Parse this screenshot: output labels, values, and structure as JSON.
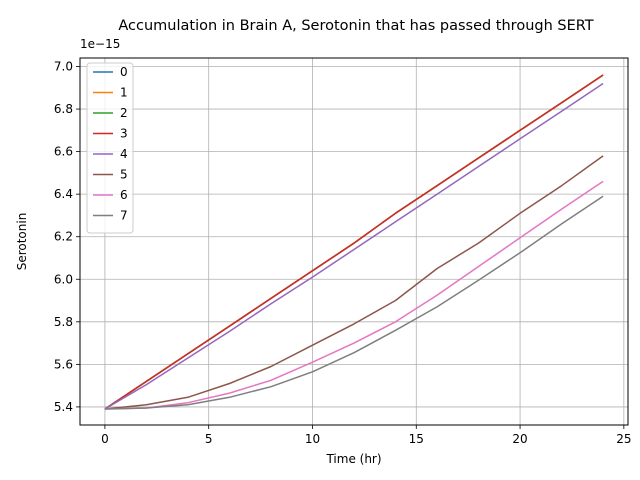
{
  "chart_data": {
    "type": "line",
    "title": "Accumulation in Brain A, Serotonin that has passed through SERT",
    "xlabel": "Time (hr)",
    "ylabel": "Serotonin",
    "y_offset_label": "1e−15",
    "y_scale_exponent": -15,
    "xlim": [
      -1.2,
      25.2
    ],
    "ylim": [
      5.315,
      7.04
    ],
    "xticks": [
      0,
      5,
      10,
      15,
      20,
      25
    ],
    "xtick_labels": [
      "0",
      "5",
      "10",
      "15",
      "20",
      "25"
    ],
    "yticks": [
      5.4,
      5.6,
      5.8,
      6.0,
      6.2,
      6.4,
      6.6,
      6.8,
      7.0
    ],
    "ytick_labels": [
      "5.4",
      "5.6",
      "5.8",
      "6.0",
      "6.2",
      "6.4",
      "6.6",
      "6.8",
      "7.0"
    ],
    "grid": true,
    "legend_position": "top-left",
    "x": [
      0,
      2,
      4,
      6,
      8,
      10,
      12,
      14,
      16,
      18,
      20,
      22,
      24
    ],
    "series": [
      {
        "name": "0",
        "color": "#1f77b4",
        "values": [
          5.39,
          5.52,
          5.65,
          5.78,
          5.91,
          6.04,
          6.17,
          6.31,
          6.44,
          6.57,
          6.7,
          6.83,
          6.96
        ]
      },
      {
        "name": "1",
        "color": "#ff7f0e",
        "values": [
          5.39,
          5.52,
          5.65,
          5.78,
          5.91,
          6.04,
          6.17,
          6.31,
          6.44,
          6.57,
          6.7,
          6.83,
          6.96
        ]
      },
      {
        "name": "2",
        "color": "#2ca02c",
        "values": [
          5.39,
          5.52,
          5.65,
          5.78,
          5.91,
          6.04,
          6.17,
          6.31,
          6.44,
          6.57,
          6.7,
          6.83,
          6.96
        ]
      },
      {
        "name": "3",
        "color": "#d62728",
        "values": [
          5.39,
          5.52,
          5.65,
          5.78,
          5.91,
          6.04,
          6.17,
          6.31,
          6.44,
          6.57,
          6.7,
          6.83,
          6.96
        ]
      },
      {
        "name": "4",
        "color": "#9467bd",
        "values": [
          5.39,
          5.505,
          5.63,
          5.755,
          5.885,
          6.01,
          6.14,
          6.27,
          6.4,
          6.53,
          6.66,
          6.79,
          6.92
        ]
      },
      {
        "name": "5",
        "color": "#8c564b",
        "values": [
          5.39,
          5.41,
          5.445,
          5.51,
          5.59,
          5.69,
          5.79,
          5.9,
          6.05,
          6.17,
          6.31,
          6.44,
          6.58
        ]
      },
      {
        "name": "6",
        "color": "#e377c2",
        "values": [
          5.39,
          5.395,
          5.42,
          5.465,
          5.525,
          5.61,
          5.7,
          5.8,
          5.925,
          6.06,
          6.195,
          6.33,
          6.46
        ]
      },
      {
        "name": "7",
        "color": "#7f7f7f",
        "values": [
          5.39,
          5.395,
          5.41,
          5.445,
          5.495,
          5.565,
          5.655,
          5.76,
          5.87,
          5.995,
          6.125,
          6.26,
          6.39
        ]
      }
    ]
  }
}
